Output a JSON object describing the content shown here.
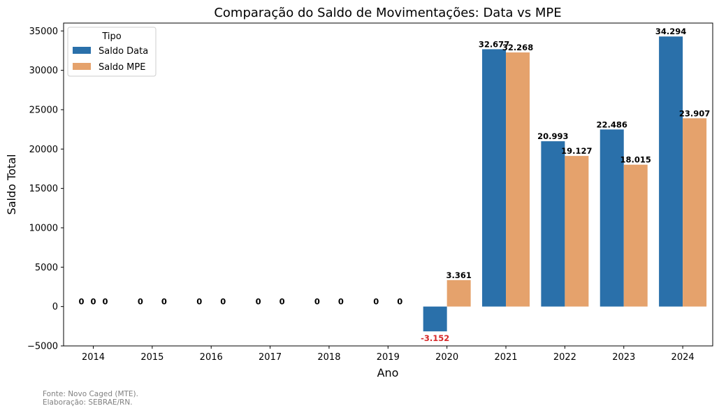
{
  "chart_data": {
    "type": "bar",
    "title": "Comparação do Saldo de Movimentações: Data vs MPE",
    "xlabel": "Ano",
    "ylabel": "Saldo Total",
    "categories": [
      "2014",
      "2015",
      "2016",
      "2017",
      "2018",
      "2019",
      "2020",
      "2021",
      "2022",
      "2023",
      "2024"
    ],
    "ylim": [
      -5000,
      36000
    ],
    "yticks": [
      -5000,
      0,
      5000,
      10000,
      15000,
      20000,
      25000,
      30000,
      35000
    ],
    "ytick_labels": [
      "−5000",
      "0",
      "5000",
      "10000",
      "15000",
      "20000",
      "25000",
      "30000",
      "35000"
    ],
    "legend": {
      "title": "Tipo",
      "position": "top-left"
    },
    "grid": false,
    "series": [
      {
        "name": "Saldo Data",
        "color": "#2a70aa",
        "values": [
          0,
          0,
          0,
          0,
          0,
          0,
          -3152,
          32677,
          20993,
          22486,
          34294
        ],
        "labels": [
          "0",
          "0",
          "0",
          "0",
          "0",
          "0",
          "-3.152",
          "32.677",
          "20.993",
          "22.486",
          "34.294"
        ]
      },
      {
        "name": "Saldo MPE",
        "color": "#e5a26c",
        "values": [
          0,
          0,
          0,
          0,
          0,
          0,
          3361,
          32268,
          19127,
          18015,
          23907
        ],
        "labels": [
          "0",
          "0",
          "0",
          "0",
          "0",
          "0",
          "3.361",
          "32.268",
          "19.127",
          "18.015",
          "23.907"
        ]
      }
    ],
    "extra_annotations": [
      {
        "text": "0",
        "category": "2014"
      }
    ],
    "negative_label_color": "#d62728"
  },
  "footer": {
    "source_line1": "Fonte: Novo Caged (MTE).",
    "source_line2": "Elaboração: SEBRAE/RN."
  }
}
